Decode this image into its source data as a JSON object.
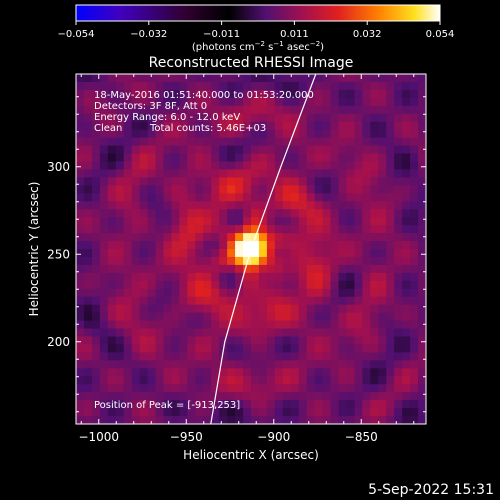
{
  "title": "Reconstructed RHESSI Image",
  "colorbar": {
    "tick_labels": [
      "−0.054",
      "−0.032",
      "−0.011",
      "0.011",
      "0.032",
      "0.054"
    ],
    "unit_text": "(photons cm",
    "unit_exp1": "−2",
    "unit_mid1": " s",
    "unit_exp2": "−1",
    "unit_mid2": " asec",
    "unit_exp3": "−2",
    "unit_close": ")",
    "colors": [
      "#0000ff",
      "#4000c0",
      "#300030",
      "#000000",
      "#501070",
      "#a01050",
      "#e02020",
      "#ff8000",
      "#ffe020",
      "#ffffff"
    ]
  },
  "annotations": {
    "time": "18-May-2016 01:51:40.000 to 01:53:20.000",
    "detectors": "Detectors: 3F 8F, Att 0",
    "energy": "Energy Range: 6.0 - 12.0 keV",
    "clean_label": "Clean",
    "total_counts": "Total counts: 5.46E+03",
    "peak": "Position of Peak = [-913,253]"
  },
  "timestamp": "5-Sep-2022 15:31",
  "chart_data": {
    "type": "heatmap",
    "title": "Reconstructed RHESSI Image",
    "xlabel": "Heliocentric X (arcsec)",
    "ylabel": "Heliocentric Y (arcsec)",
    "xlim": [
      -1013,
      -813
    ],
    "ylim": [
      153,
      353
    ],
    "x_ticks": [
      -1000,
      -950,
      -900,
      -850
    ],
    "y_ticks": [
      200,
      250,
      300
    ],
    "x_tick_labels": [
      "−1000",
      "−950",
      "−900",
      "−850"
    ],
    "y_tick_labels": [
      "200",
      "250",
      "300"
    ],
    "color_range": [
      -0.054,
      0.054
    ],
    "peak": {
      "x": -913,
      "y": 253,
      "value": 0.054
    },
    "limb_curve": [
      [
        -936,
        153
      ],
      [
        -928,
        200
      ],
      [
        -913,
        253
      ],
      [
        -896,
        300
      ],
      [
        -876,
        353
      ]
    ],
    "background_structure": "rings of moderate emission surrounding a bright compact source near the limb",
    "grid": false,
    "legend": "colorbar at top"
  }
}
